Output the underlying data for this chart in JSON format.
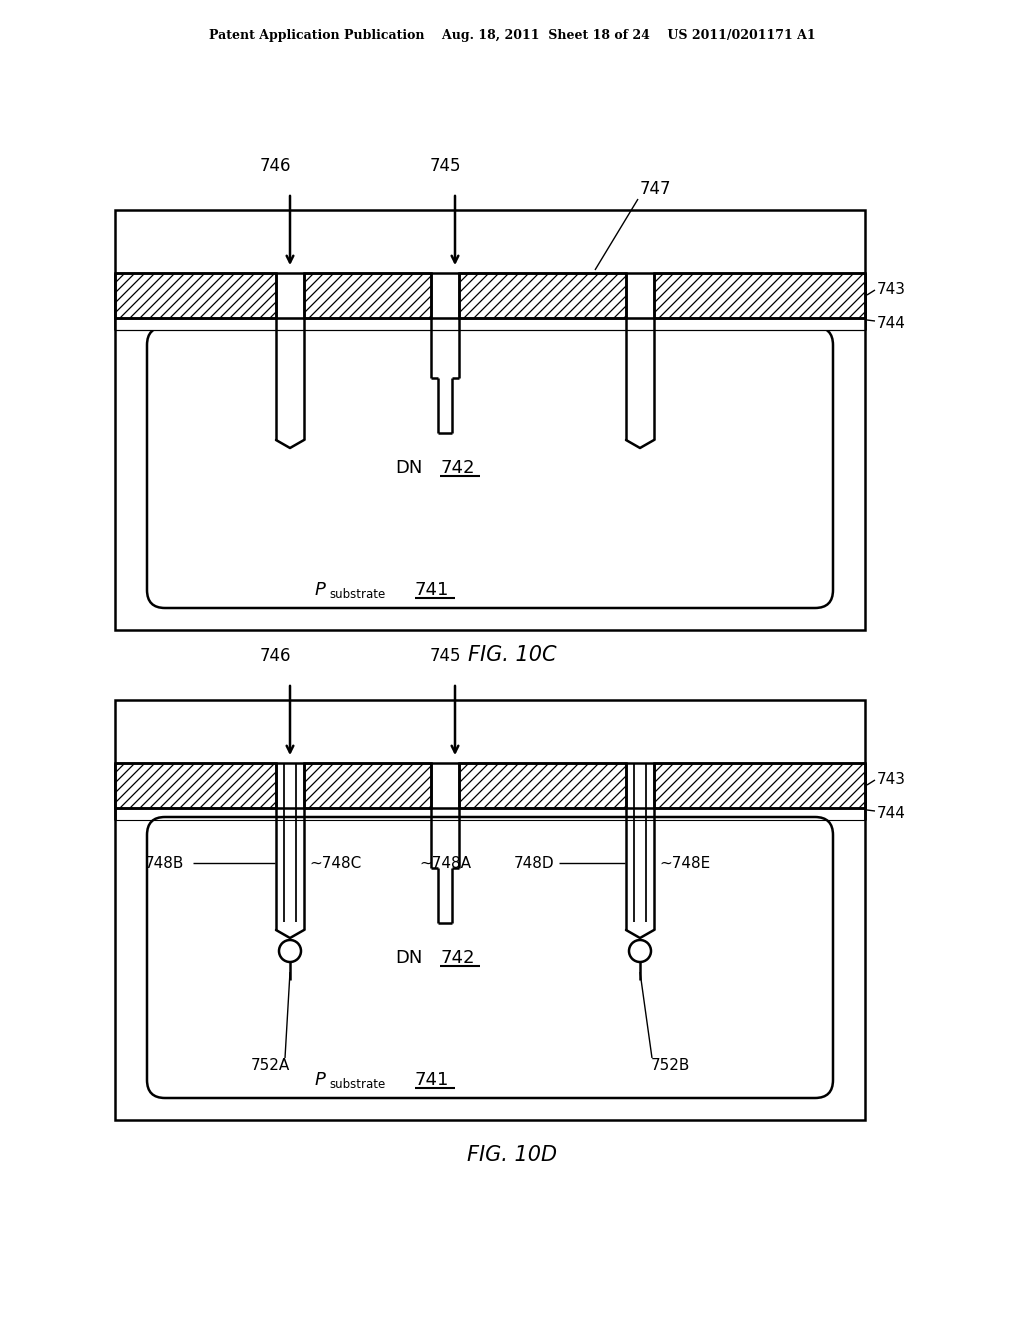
{
  "bg_color": "#ffffff",
  "line_color": "#000000",
  "header_text": "Patent Application Publication    Aug. 18, 2011  Sheet 18 of 24    US 2011/0201171 A1",
  "fig1_caption": "FIG. 10C",
  "fig2_caption": "FIG. 10D"
}
